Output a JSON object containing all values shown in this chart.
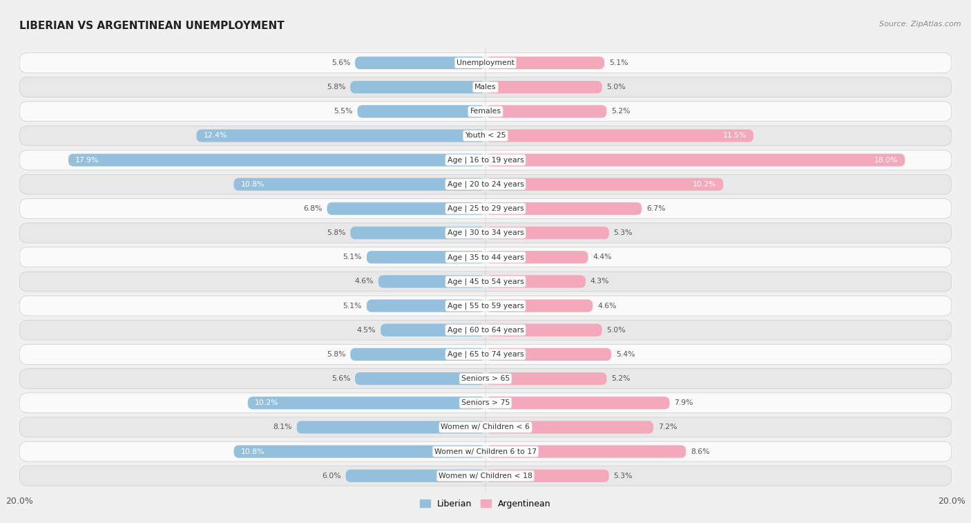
{
  "title": "LIBERIAN VS ARGENTINEAN UNEMPLOYMENT",
  "source": "Source: ZipAtlas.com",
  "categories": [
    "Unemployment",
    "Males",
    "Females",
    "Youth < 25",
    "Age | 16 to 19 years",
    "Age | 20 to 24 years",
    "Age | 25 to 29 years",
    "Age | 30 to 34 years",
    "Age | 35 to 44 years",
    "Age | 45 to 54 years",
    "Age | 55 to 59 years",
    "Age | 60 to 64 years",
    "Age | 65 to 74 years",
    "Seniors > 65",
    "Seniors > 75",
    "Women w/ Children < 6",
    "Women w/ Children 6 to 17",
    "Women w/ Children < 18"
  ],
  "liberian": [
    5.6,
    5.8,
    5.5,
    12.4,
    17.9,
    10.8,
    6.8,
    5.8,
    5.1,
    4.6,
    5.1,
    4.5,
    5.8,
    5.6,
    10.2,
    8.1,
    10.8,
    6.0
  ],
  "argentinean": [
    5.1,
    5.0,
    5.2,
    11.5,
    18.0,
    10.2,
    6.7,
    5.3,
    4.4,
    4.3,
    4.6,
    5.0,
    5.4,
    5.2,
    7.9,
    7.2,
    8.6,
    5.3
  ],
  "liberian_color": "#94c0de",
  "argentinean_color": "#f4a8bc",
  "max_val": 20.0,
  "bg_color": "#f0f0f0",
  "row_bg_light": "#fafafa",
  "row_bg_dark": "#e8e8e8",
  "label_color_dark": "#555555",
  "label_color_white": "#ffffff"
}
